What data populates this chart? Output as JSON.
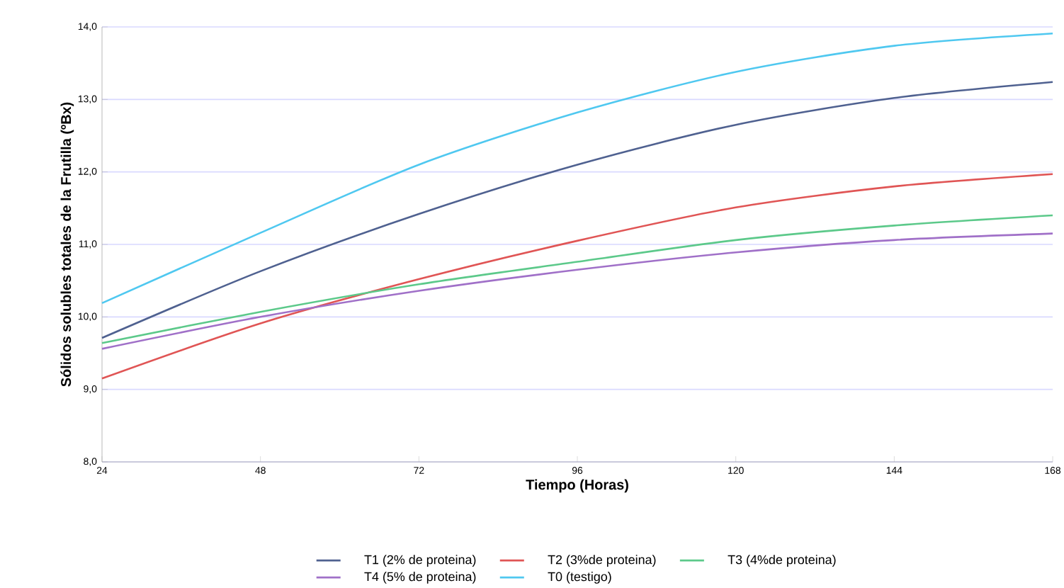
{
  "chart_data": {
    "type": "line",
    "xlabel": "Tiempo (Horas)",
    "ylabel": "Sólidos solubles totales de la Frutilla (ºBx)",
    "x": [
      24,
      48,
      72,
      96,
      120,
      144,
      168
    ],
    "xlim": [
      24,
      168
    ],
    "xticks": [
      24,
      48,
      72,
      96,
      120,
      144,
      168
    ],
    "ylim": [
      8,
      14
    ],
    "yticks": [
      {
        "value": 8,
        "label": "8,0"
      },
      {
        "value": 9,
        "label": "9,0"
      },
      {
        "value": 10,
        "label": "10,0"
      },
      {
        "value": 11,
        "label": "11,0"
      },
      {
        "value": 12,
        "label": "12,0"
      },
      {
        "value": 13,
        "label": "13,0"
      },
      {
        "value": 14,
        "label": "14,0"
      }
    ],
    "grid": "y",
    "legend": "bottom",
    "marker": "none",
    "line_style": "solid",
    "series": [
      {
        "name": "T1 (2% de proteina)",
        "color": "#4f6190",
        "values": [
          9.71,
          10.63,
          11.42,
          12.1,
          12.65,
          13.02,
          13.24
        ]
      },
      {
        "name": "T2 (3%de proteina)",
        "color": "#e05555",
        "values": [
          9.15,
          9.91,
          10.52,
          11.05,
          11.51,
          11.8,
          11.97
        ]
      },
      {
        "name": "T3 (4%de proteina)",
        "color": "#5cc98a",
        "values": [
          9.64,
          10.07,
          10.45,
          10.76,
          11.06,
          11.26,
          11.4
        ]
      },
      {
        "name": "T4 (5% de proteina)",
        "color": "#a070c8",
        "values": [
          9.56,
          10.0,
          10.36,
          10.65,
          10.89,
          11.06,
          11.15
        ]
      },
      {
        "name": "T0 (testigo)",
        "color": "#4fc8f0",
        "values": [
          10.19,
          11.16,
          12.1,
          12.82,
          13.38,
          13.74,
          13.91
        ]
      }
    ]
  }
}
